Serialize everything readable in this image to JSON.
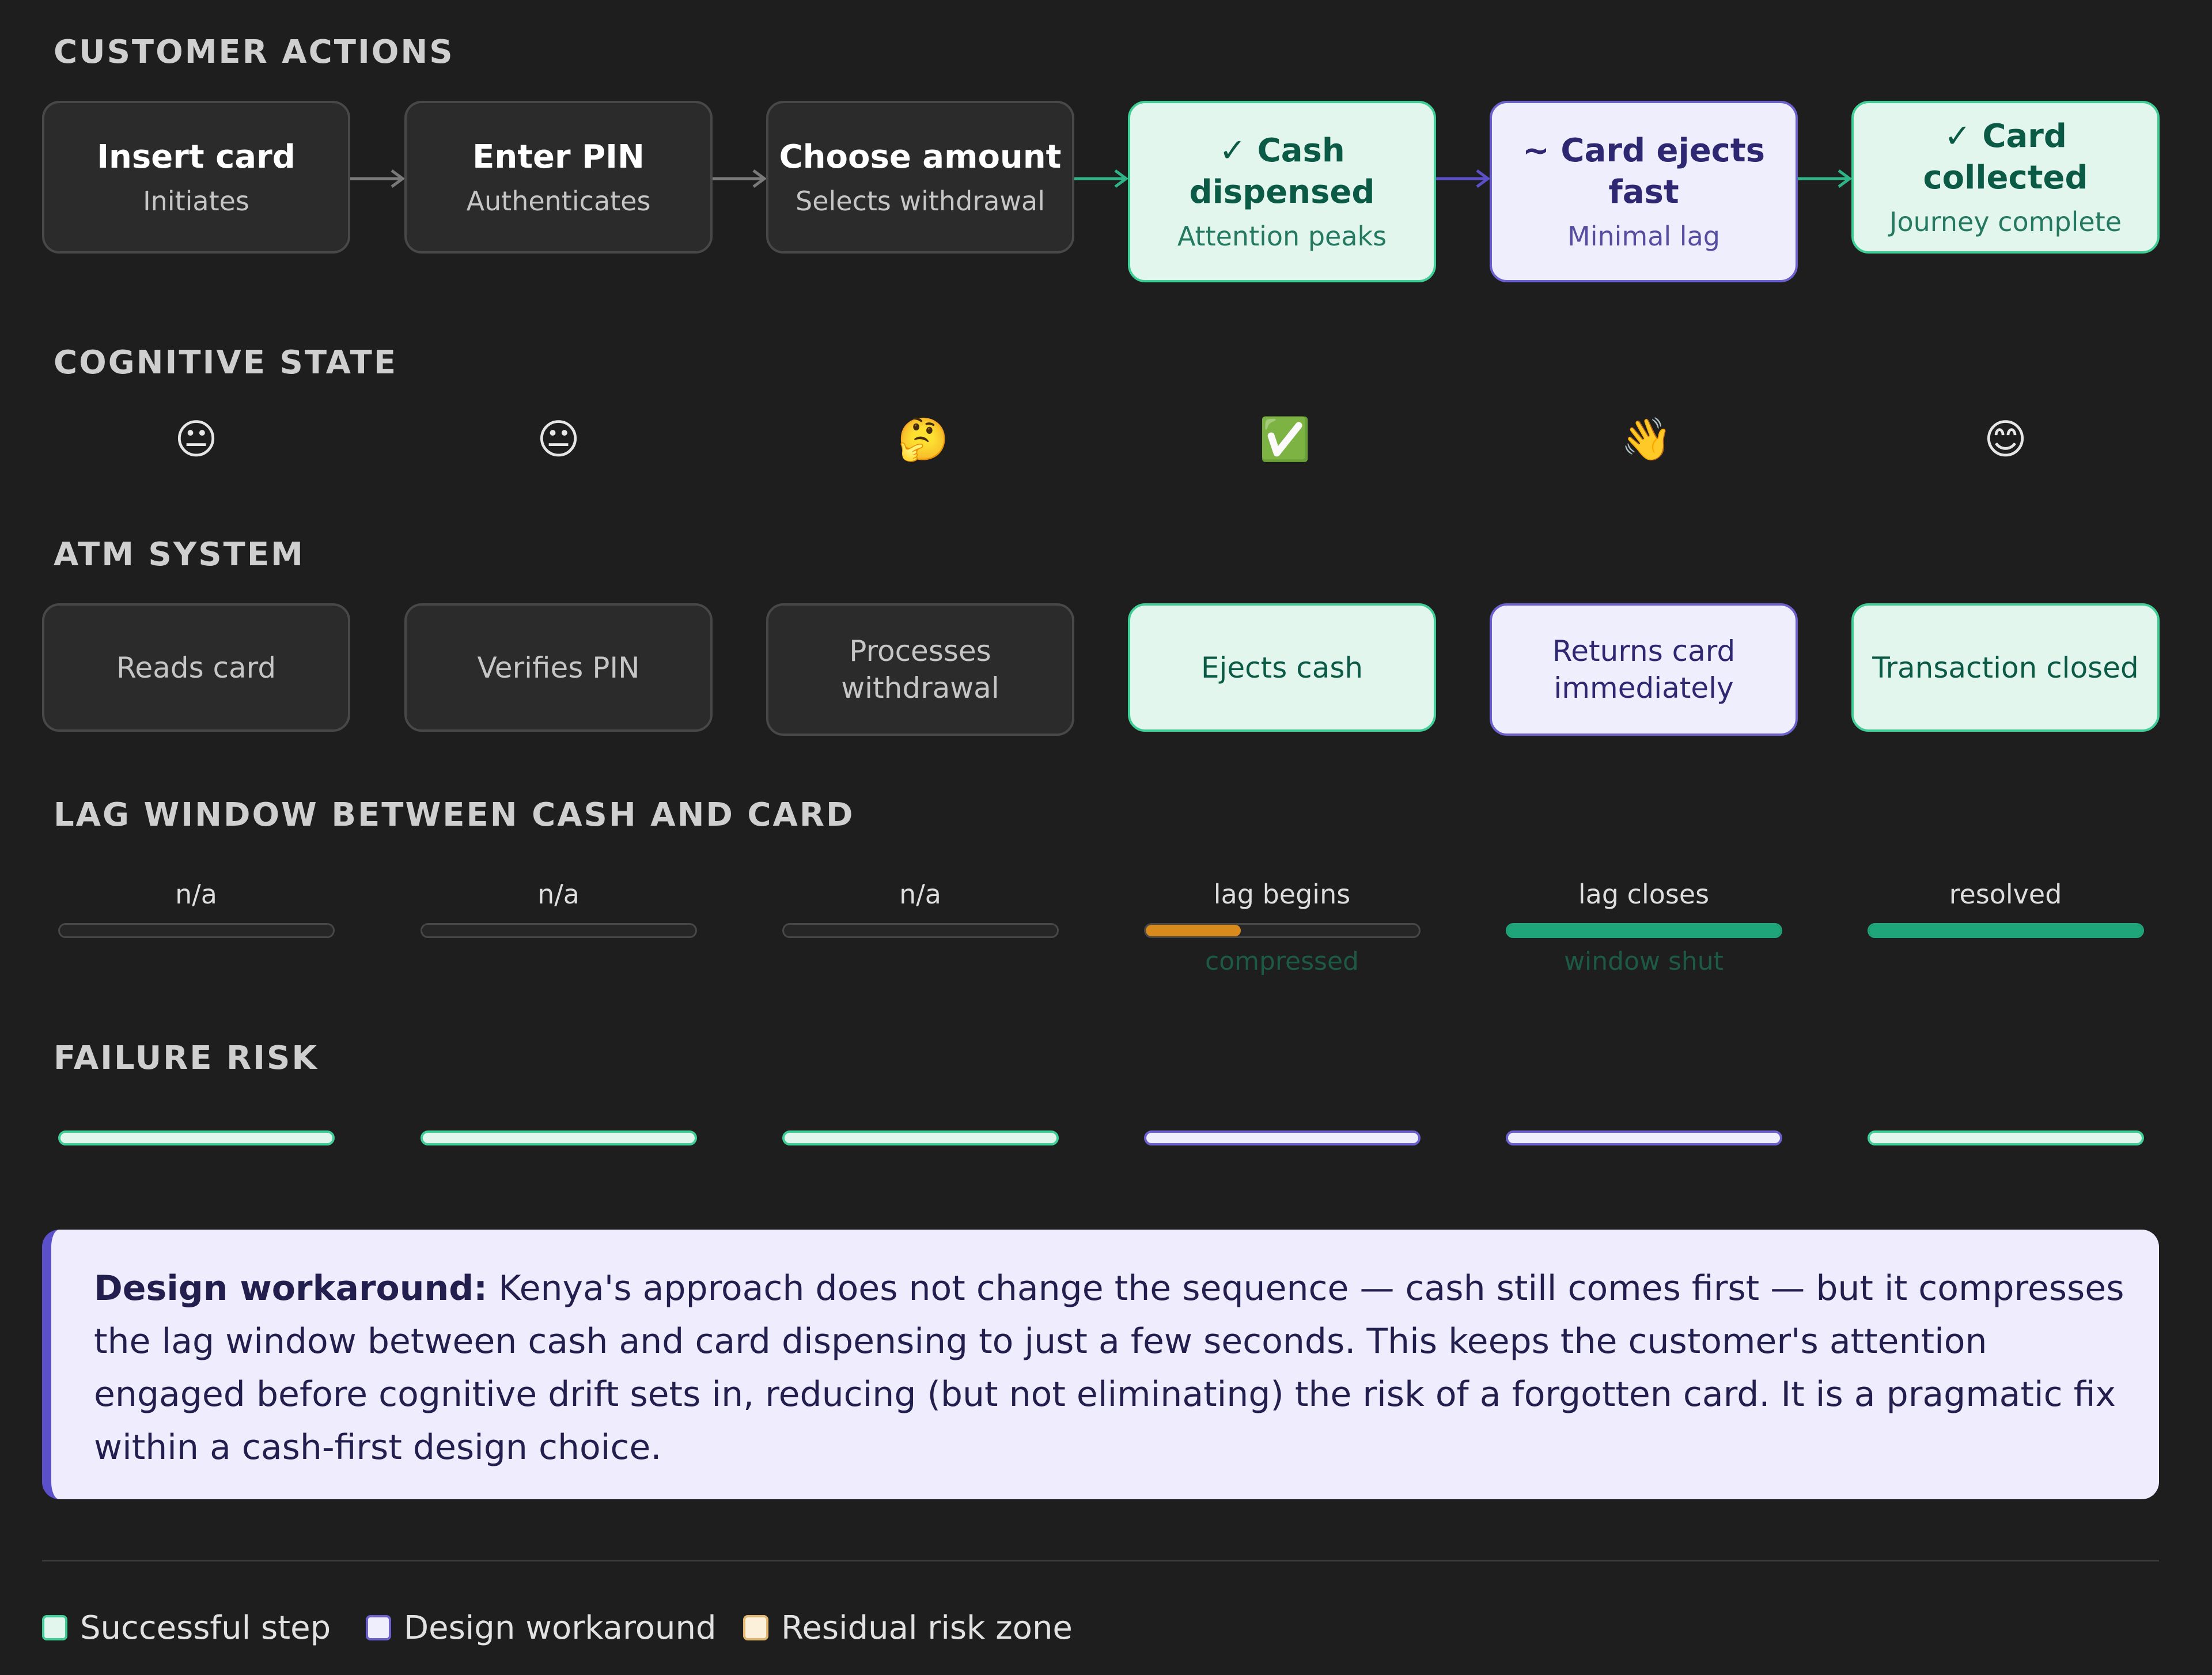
{
  "sections": {
    "customer_actions": "CUSTOMER ACTIONS",
    "cognitive_state": "COGNITIVE STATE",
    "atm_system": "ATM SYSTEM",
    "lag_window": "LAG WINDOW BETWEEN CASH AND CARD",
    "failure_risk": "FAILURE RISK"
  },
  "colors": {
    "success_fill": "#e3f6ee",
    "success_border": "#3fcf96",
    "workaround_fill": "#efeefd",
    "workaround_border": "#6c60cf",
    "residual_fill": "#fdf0da",
    "lag_orange": "#d98a1c",
    "lag_green": "#1fa57a"
  },
  "steps": [
    {
      "title": "Insert card",
      "subtitle": "Initiates",
      "state": "neutral",
      "emoji": "😐",
      "system": "Reads card",
      "lag_label": "n/a",
      "lag_fill": 0,
      "lag_note": "",
      "risk": "success"
    },
    {
      "title": "Enter PIN",
      "subtitle": "Authenticates",
      "state": "neutral",
      "emoji": "😐",
      "system": "Verifies PIN",
      "lag_label": "n/a",
      "lag_fill": 0,
      "lag_note": "",
      "risk": "success"
    },
    {
      "title": "Choose amount",
      "subtitle": "Selects withdrawal",
      "state": "neutral",
      "emoji": "🤔",
      "system": "Processes withdrawal",
      "lag_label": "n/a",
      "lag_fill": 0,
      "lag_note": "",
      "risk": "success"
    },
    {
      "title": "✓ Cash dispensed",
      "subtitle": "Attention peaks",
      "state": "success",
      "emoji": "✅",
      "system": "Ejects cash",
      "lag_label": "lag begins",
      "lag_fill": 0.35,
      "lag_note": "compressed",
      "risk": "workaround"
    },
    {
      "title": "~ Card ejects fast",
      "subtitle": "Minimal lag",
      "state": "workaround",
      "emoji": "👋",
      "system": "Returns card immediately",
      "lag_label": "lag closes",
      "lag_fill": 1,
      "lag_note": "window shut",
      "risk": "workaround"
    },
    {
      "title": "✓ Card collected",
      "subtitle": "Journey complete",
      "state": "success",
      "emoji": "😊",
      "system": "Transaction closed",
      "lag_label": "resolved",
      "lag_fill": 1,
      "lag_note": "",
      "risk": "success"
    }
  ],
  "callout": {
    "lead": "Design workaround:",
    "body": " Kenya's approach does not change the sequence — cash still comes first — but it compresses the lag window between cash and card dispensing to just a few seconds. This keeps the customer's attention engaged before cognitive drift sets in, reducing (but not eliminating) the risk of a forgotten card. It is a pragmatic fix within a cash-first design choice."
  },
  "legend": [
    {
      "label": "Successful step",
      "swatch": "success"
    },
    {
      "label": "Design workaround",
      "swatch": "workaround"
    },
    {
      "label": "Residual risk zone",
      "swatch": "residual"
    }
  ]
}
